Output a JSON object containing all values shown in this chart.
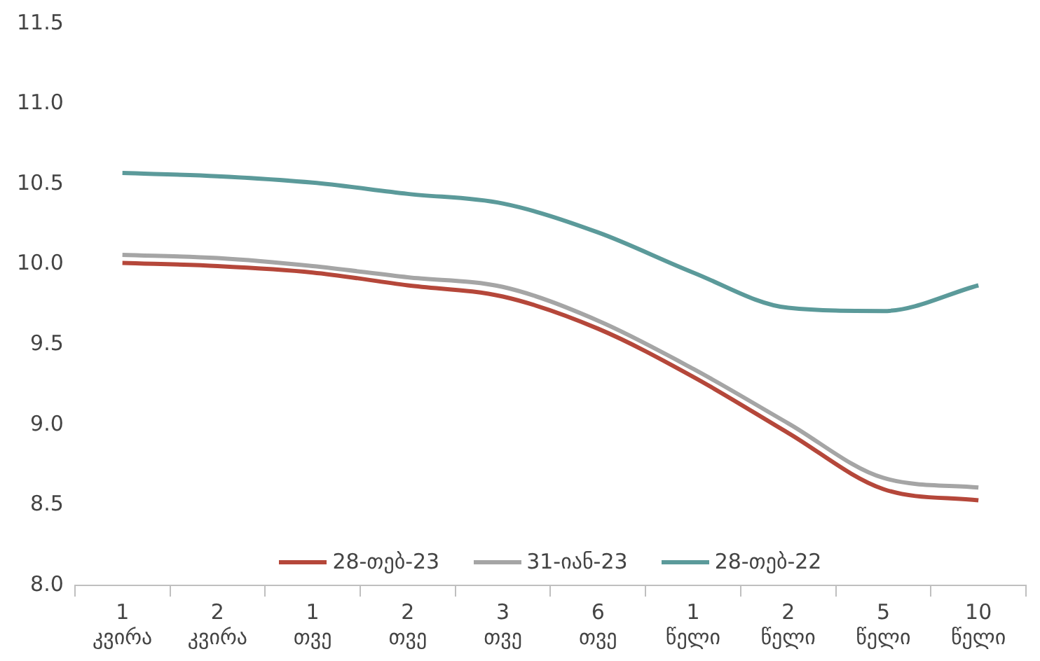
{
  "chart_data": {
    "type": "line",
    "categories": [
      "1 კვირა",
      "2 კვირა",
      "1 თვე",
      "2 თვე",
      "3 თვე",
      "6 თვე",
      "1 წელი",
      "2 წელი",
      "5 წელი",
      "10 წელი"
    ],
    "series": [
      {
        "name": "28-თებ-23",
        "color": "#b5473a",
        "values": [
          10.01,
          9.99,
          9.95,
          9.87,
          9.8,
          9.6,
          9.3,
          8.95,
          8.6,
          8.53
        ]
      },
      {
        "name": "31-იან-23",
        "color": "#a5a5a5",
        "values": [
          10.06,
          10.04,
          9.99,
          9.92,
          9.86,
          9.65,
          9.35,
          9.01,
          8.67,
          8.61
        ]
      },
      {
        "name": "28-თებ-22",
        "color": "#5b9a9a",
        "values": [
          10.57,
          10.55,
          10.51,
          10.44,
          10.38,
          10.2,
          9.95,
          9.73,
          9.71,
          9.87
        ]
      }
    ],
    "ylim": [
      8.0,
      11.5
    ],
    "yticks": [
      {
        "value": 8,
        "label": "8.0"
      },
      {
        "value": 8.5,
        "label": "8.5"
      },
      {
        "value": 9,
        "label": "9.0"
      },
      {
        "value": 9.5,
        "label": "9.5"
      },
      {
        "value": 10,
        "label": "10.0"
      },
      {
        "value": 10.5,
        "label": "10.5"
      },
      {
        "value": 11,
        "label": "11.0"
      },
      {
        "value": 11.5,
        "label": "11.5"
      }
    ],
    "grid": false,
    "legend": "bottom",
    "marker": "none",
    "line_style": "solid"
  }
}
